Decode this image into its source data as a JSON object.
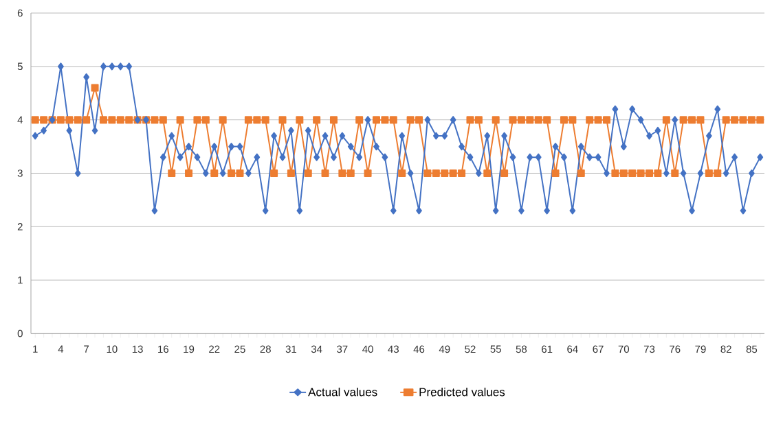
{
  "chart_data": {
    "type": "line",
    "categories": [
      "1",
      null,
      null,
      "4",
      null,
      null,
      "7",
      null,
      null,
      "10",
      null,
      null,
      "13",
      null,
      null,
      "16",
      null,
      null,
      "19",
      null,
      null,
      "22",
      null,
      null,
      "25",
      null,
      null,
      "28",
      null,
      null,
      "31",
      null,
      null,
      "34",
      null,
      null,
      "37",
      null,
      null,
      "40",
      null,
      null,
      "43",
      null,
      null,
      "46",
      null,
      null,
      "49",
      null,
      null,
      "52",
      null,
      null,
      "55",
      null,
      null,
      "58",
      null,
      null,
      "61",
      null,
      null,
      "64",
      null,
      null,
      "67",
      null,
      null,
      "70",
      null,
      null,
      "73",
      null,
      null,
      "76",
      null,
      null,
      "79",
      null,
      null,
      "82",
      null,
      null,
      "85",
      null
    ],
    "series": [
      {
        "name": "Actual values",
        "color": "#4472c4",
        "marker": "diamond",
        "values": [
          3.7,
          3.8,
          4,
          5,
          3.8,
          3,
          4.8,
          3.8,
          5,
          5,
          5,
          5,
          4,
          4,
          2.3,
          3.3,
          3.7,
          3.3,
          3.5,
          3.3,
          3,
          3.5,
          3,
          3.5,
          3.5,
          3,
          3.3,
          2.3,
          3.7,
          3.3,
          3.8,
          2.3,
          3.8,
          3.3,
          3.7,
          3.3,
          3.7,
          3.5,
          3.3,
          4,
          3.5,
          3.3,
          2.3,
          3.7,
          3,
          2.3,
          4,
          3.7,
          3.7,
          4,
          3.5,
          3.3,
          3,
          3.7,
          2.3,
          3.7,
          3.3,
          2.3,
          3.3,
          3.3,
          2.3,
          3.5,
          3.3,
          2.3,
          3.5,
          3.3,
          3.3,
          3,
          4.2,
          3.5,
          4.2,
          4,
          3.7,
          3.8,
          3,
          4,
          3,
          2.3,
          3,
          3.7,
          4.2,
          3,
          3.3,
          2.3,
          3,
          3.3
        ]
      },
      {
        "name": "Predicted values",
        "color": "#ed7d31",
        "marker": "square",
        "values": [
          4,
          4,
          4,
          4,
          4,
          4,
          4,
          4.6,
          4,
          4,
          4,
          4,
          4,
          4,
          4,
          4,
          3,
          4,
          3,
          4,
          4,
          3,
          4,
          3,
          3,
          4,
          4,
          4,
          3,
          4,
          3,
          4,
          3,
          4,
          3,
          4,
          3,
          3,
          4,
          3,
          4,
          4,
          4,
          3,
          4,
          4,
          3,
          3,
          3,
          3,
          3,
          4,
          4,
          3,
          4,
          3,
          4,
          4,
          4,
          4,
          4,
          3,
          4,
          4,
          3,
          4,
          4,
          4,
          3,
          3,
          3,
          3,
          3,
          3,
          4,
          3,
          4,
          4,
          4,
          3,
          3,
          4,
          4,
          4,
          4,
          4
        ]
      }
    ],
    "ylim": [
      0,
      6
    ],
    "yticks": [
      0,
      1,
      2,
      3,
      4,
      5,
      6
    ],
    "grid": "y",
    "legend": "bottom",
    "line_style": "solid"
  }
}
